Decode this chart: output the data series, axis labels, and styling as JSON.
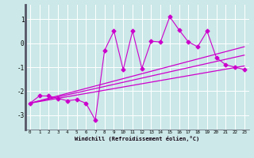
{
  "xlabel": "Windchill (Refroidissement éolien,°C)",
  "background_color": "#cce8e8",
  "grid_color": "#aadddd",
  "line_color": "#cc00cc",
  "axis_color": "#555566",
  "xlim": [
    -0.5,
    23.5
  ],
  "ylim": [
    -3.6,
    1.6
  ],
  "yticks": [
    -3,
    -2,
    -1,
    0,
    1
  ],
  "xticks": [
    0,
    1,
    2,
    3,
    4,
    5,
    6,
    7,
    8,
    9,
    10,
    11,
    12,
    13,
    14,
    15,
    16,
    17,
    18,
    19,
    20,
    21,
    22,
    23
  ],
  "left_bar_color": "#555566",
  "lines": [
    {
      "x": [
        0,
        1,
        2,
        3,
        4,
        5,
        6,
        7,
        8,
        9,
        10,
        11,
        12,
        13,
        14,
        15,
        16,
        17,
        18,
        19,
        20,
        21,
        22,
        23
      ],
      "y": [
        -2.5,
        -2.2,
        -2.2,
        -2.3,
        -2.4,
        -2.35,
        -2.5,
        -3.2,
        -0.3,
        0.5,
        -1.1,
        0.5,
        -1.05,
        0.08,
        0.05,
        1.1,
        0.55,
        0.05,
        -0.15,
        0.5,
        -0.6,
        -0.9,
        -1.0,
        -1.1
      ],
      "marker": "D",
      "markersize": 2.5,
      "linewidth": 0.8,
      "zorder": 3
    },
    {
      "x": [
        0,
        23
      ],
      "y": [
        -2.5,
        -0.15
      ],
      "marker": null,
      "markersize": 0,
      "linewidth": 0.9,
      "zorder": 2
    },
    {
      "x": [
        0,
        23
      ],
      "y": [
        -2.5,
        -0.95
      ],
      "marker": null,
      "markersize": 0,
      "linewidth": 0.9,
      "zorder": 2
    },
    {
      "x": [
        0,
        23
      ],
      "y": [
        -2.5,
        -0.5
      ],
      "marker": null,
      "markersize": 0,
      "linewidth": 0.9,
      "zorder": 2
    }
  ]
}
